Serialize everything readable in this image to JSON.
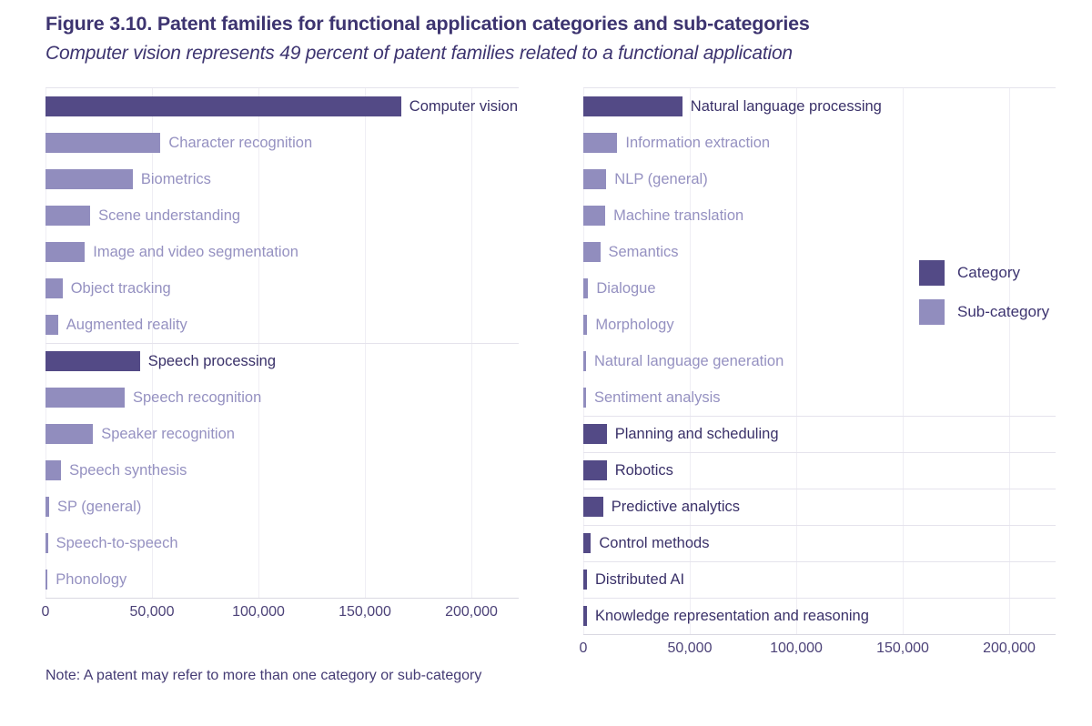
{
  "figure": {
    "title": "Figure 3.10. Patent families for functional application categories and sub-categories",
    "subtitle": "Computer vision represents 49 percent of patent families related to a functional application",
    "note": "Note: A patent may refer to more than one category or sub-category"
  },
  "legend": {
    "position": "right",
    "items": [
      {
        "label": "Category",
        "kind": "category",
        "color": "#534A86"
      },
      {
        "label": "Sub-category",
        "kind": "subcategory",
        "color": "#918DBE"
      }
    ]
  },
  "colors": {
    "category_bar": "#534A86",
    "subcategory_bar": "#918DBE",
    "category_text": "#3A3169",
    "subcategory_text": "#9591C1",
    "title_text": "#3D3470",
    "axis_text": "#4C4278",
    "gridline": "#EFEEF4",
    "separator": "#E5E3EC"
  },
  "chart_data": [
    {
      "type": "bar",
      "orientation": "horizontal",
      "grid": true,
      "tick_interval": 50000,
      "xlim": [
        0,
        222000
      ],
      "x_ticks": [
        "0",
        "50,000",
        "100,000",
        "150,000",
        "200,000"
      ],
      "rows": [
        {
          "label": "Computer vision",
          "value": 167000,
          "kind": "category",
          "separator_above": false
        },
        {
          "label": "Character recognition",
          "value": 54000,
          "kind": "subcategory",
          "separator_above": false
        },
        {
          "label": "Biometrics",
          "value": 41000,
          "kind": "subcategory",
          "separator_above": false
        },
        {
          "label": "Scene understanding",
          "value": 21000,
          "kind": "subcategory",
          "separator_above": false
        },
        {
          "label": "Image and video segmentation",
          "value": 18500,
          "kind": "subcategory",
          "separator_above": false
        },
        {
          "label": "Object tracking",
          "value": 8000,
          "kind": "subcategory",
          "separator_above": false
        },
        {
          "label": "Augmented reality",
          "value": 5900,
          "kind": "subcategory",
          "separator_above": false
        },
        {
          "label": "Speech processing",
          "value": 44300,
          "kind": "category",
          "separator_above": true
        },
        {
          "label": "Speech recognition",
          "value": 37200,
          "kind": "subcategory",
          "separator_above": false
        },
        {
          "label": "Speaker recognition",
          "value": 22300,
          "kind": "subcategory",
          "separator_above": false
        },
        {
          "label": "Speech synthesis",
          "value": 7300,
          "kind": "subcategory",
          "separator_above": false
        },
        {
          "label": "SP (general)",
          "value": 1700,
          "kind": "subcategory",
          "separator_above": false
        },
        {
          "label": "Speech-to-speech",
          "value": 1100,
          "kind": "subcategory",
          "separator_above": false
        },
        {
          "label": "Phonology",
          "value": 1000,
          "kind": "subcategory",
          "separator_above": false
        }
      ]
    },
    {
      "type": "bar",
      "orientation": "horizontal",
      "grid": true,
      "tick_interval": 50000,
      "xlim": [
        0,
        222000
      ],
      "x_ticks": [
        "0",
        "50,000",
        "100,000",
        "150,000",
        "200,000"
      ],
      "rows": [
        {
          "label": "Natural language processing",
          "value": 46500,
          "kind": "category",
          "separator_above": false
        },
        {
          "label": "Information extraction",
          "value": 16000,
          "kind": "subcategory",
          "separator_above": false
        },
        {
          "label": "NLP (general)",
          "value": 10800,
          "kind": "subcategory",
          "separator_above": false
        },
        {
          "label": "Machine translation",
          "value": 10300,
          "kind": "subcategory",
          "separator_above": false
        },
        {
          "label": "Semantics",
          "value": 7900,
          "kind": "subcategory",
          "separator_above": false
        },
        {
          "label": "Dialogue",
          "value": 2300,
          "kind": "subcategory",
          "separator_above": false
        },
        {
          "label": "Morphology",
          "value": 1900,
          "kind": "subcategory",
          "separator_above": false
        },
        {
          "label": "Natural language generation",
          "value": 1300,
          "kind": "subcategory",
          "separator_above": false
        },
        {
          "label": "Sentiment analysis",
          "value": 1300,
          "kind": "subcategory",
          "separator_above": false
        },
        {
          "label": "Planning and scheduling",
          "value": 11000,
          "kind": "category",
          "separator_above": true
        },
        {
          "label": "Robotics",
          "value": 11000,
          "kind": "category",
          "separator_above": true
        },
        {
          "label": "Predictive analytics",
          "value": 9300,
          "kind": "category",
          "separator_above": true
        },
        {
          "label": "Control methods",
          "value": 3600,
          "kind": "category",
          "separator_above": true
        },
        {
          "label": "Distributed AI",
          "value": 1700,
          "kind": "category",
          "separator_above": true
        },
        {
          "label": "Knowledge representation and reasoning",
          "value": 1700,
          "kind": "category",
          "separator_above": true
        }
      ]
    }
  ]
}
